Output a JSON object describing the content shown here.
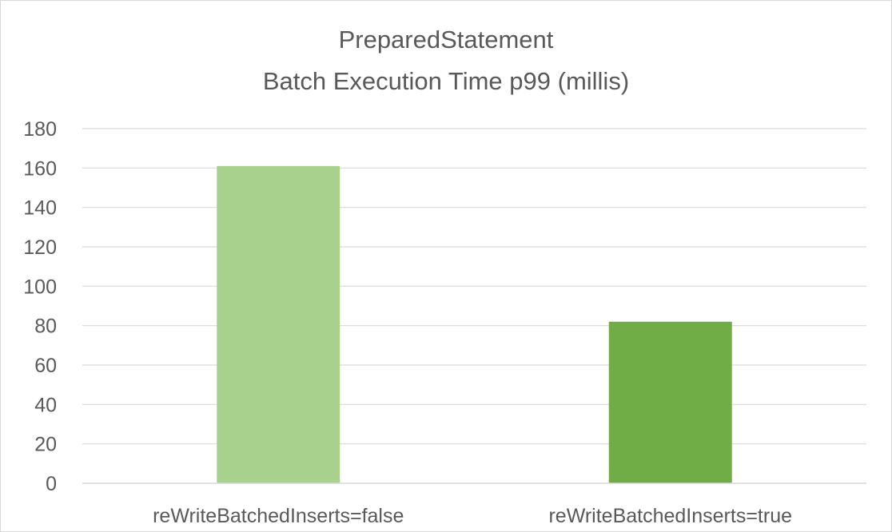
{
  "chart_data": {
    "type": "bar",
    "title": [
      "PreparedStatement",
      "Batch Execution Time p99 (millis)"
    ],
    "categories": [
      "reWriteBatchedInserts=false",
      "reWriteBatchedInserts=true"
    ],
    "values": [
      161,
      82
    ],
    "bar_colors": [
      "#a9d18e",
      "#70ad47"
    ],
    "ylim": [
      0,
      180
    ],
    "yticks": [
      "0",
      "20",
      "40",
      "60",
      "80",
      "100",
      "120",
      "140",
      "160",
      "180"
    ],
    "grid": true,
    "gridline_color": "#d9d9d9",
    "text_color": "#595959"
  }
}
